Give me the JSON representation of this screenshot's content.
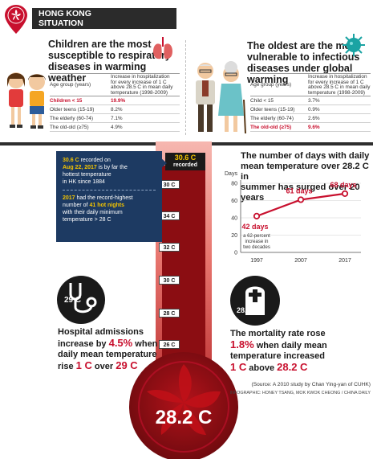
{
  "header": {
    "title_line1": "HONG KONG",
    "title_line2": "SITUATION"
  },
  "children": {
    "title_lines": [
      "Children are the most",
      "susceptible to respiratory",
      "diseases in warming weather"
    ],
    "table": {
      "col1": "Age group (years)",
      "col2_lines": [
        "Increase in hospitalization",
        "for every increase of 1 C",
        "above 28.5 C in mean daily",
        "temperature (1998-2009)"
      ],
      "rows": [
        {
          "group": "Children < 15",
          "value": "19.9%",
          "highlight": true
        },
        {
          "group": "Older teens (15-19)",
          "value": "8.2%",
          "highlight": false
        },
        {
          "group": "The elderly (60-74)",
          "value": "7.1%",
          "highlight": false
        },
        {
          "group": "The old-old (≥75)",
          "value": "4.9%",
          "highlight": false
        }
      ]
    }
  },
  "oldest": {
    "title_lines": [
      "The oldest are the most",
      "vulnerable to infectious",
      "diseases under global warming"
    ],
    "table": {
      "col1": "Age group (years)",
      "col2_lines": [
        "Increase in hospitalization",
        "for every increase of 1 C",
        "above 28.5 C in mean daily",
        "temperature (1998-2009)"
      ],
      "rows": [
        {
          "group": "Child < 15",
          "value": "3.7%",
          "highlight": false
        },
        {
          "group": "Older teens (15-19)",
          "value": "0.9%",
          "highlight": false
        },
        {
          "group": "The elderly (60-74)",
          "value": "2.6%",
          "highlight": false
        },
        {
          "group": "The old-old (≥75)",
          "value": "9.6%",
          "highlight": true
        }
      ]
    }
  },
  "record_box": {
    "temp": "30.6 C",
    "line1_rest": " recorded on",
    "date": "Aug 22, 2017",
    "line2_rest": " is by far the",
    "line3": "hottest temperature",
    "line4": "in HK since 1884",
    "year": "2017",
    "line5_rest": " had the record-highest",
    "line6_pre": "number of ",
    "hot_nights": "41 hot nights",
    "line7": "with their daily minimum",
    "line8": "temperature > 28 C"
  },
  "thermometer": {
    "top_value": "30.6 C",
    "top_caption": "recorded",
    "ticks": [
      "30 C",
      "34 C",
      "32 C",
      "30 C",
      "28 C",
      "26 C"
    ],
    "bulb_value": "28.2 C"
  },
  "days_chart": {
    "title_lines": [
      "The number of days with daily",
      "mean temperature over 28.2 C in",
      "summer has surged over 20 years"
    ],
    "y_axis_title": "Days",
    "annotation_lines": [
      "a 62-percent",
      "increase in",
      "two decades"
    ],
    "chart_data": {
      "type": "line",
      "x": [
        "1997",
        "2007",
        "2017"
      ],
      "values": [
        42,
        61,
        68
      ],
      "data_labels": [
        "42 days",
        "61 days",
        "68 days"
      ],
      "y_ticks": [
        "0",
        "20",
        "40",
        "60",
        "80"
      ],
      "ylim": [
        0,
        80
      ]
    }
  },
  "hospital": {
    "icon_text": "29 C",
    "line1": "Hospital admissions",
    "line2_pre": "increase by ",
    "pct": "4.5%",
    "line2_post": " when",
    "line3": "daily mean temperature",
    "line4_pre": "rise ",
    "rise": "1 C",
    "line4_mid": " over ",
    "over": "29 C"
  },
  "mortality": {
    "icon_text": "28.2 C",
    "line1": "The mortality rate rose",
    "pct": "1.8%",
    "line2_post": " when daily mean",
    "line3": "temperature increased",
    "amount": "1 C",
    "line4_mid": " above ",
    "threshold": "28.2 C",
    "source": "(Source: A 2010 study by Chan Ying-yan of CUHK)",
    "credit": "INFOGRAPHIC: HONEY TSANG, MOK KWOK CHEONG / CHINA DAILY"
  },
  "colors": {
    "red": "#c8102e",
    "navy": "#1d3a62",
    "yellow": "#f4c400",
    "thermo_dark": "#8b0d12"
  }
}
